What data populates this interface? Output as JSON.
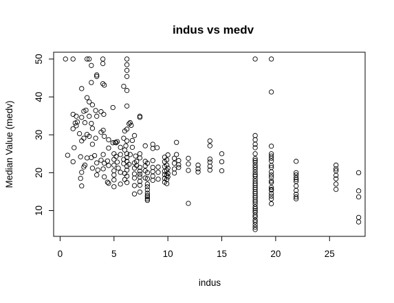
{
  "chart_data": {
    "type": "scatter",
    "title": "indus vs medv",
    "xlabel": "indus",
    "ylabel": "Median Value (medv)",
    "xlim": [
      -0.6,
      28.3
    ],
    "ylim": [
      3.2,
      51.8
    ],
    "xticks": [
      0,
      5,
      10,
      15,
      20,
      25
    ],
    "yticks": [
      10,
      20,
      30,
      40,
      50
    ],
    "grid": false,
    "legend": "none",
    "marker": "open-circle",
    "points": [
      {
        "x": 0.5,
        "y": 50.0
      },
      {
        "x": 1.2,
        "y": 50.0
      },
      {
        "x": 2.5,
        "y": 50.0
      },
      {
        "x": 2.7,
        "y": 50.0
      },
      {
        "x": 2.9,
        "y": 48.3
      },
      {
        "x": 3.97,
        "y": 50.0
      },
      {
        "x": 3.97,
        "y": 48.8
      },
      {
        "x": 6.2,
        "y": 50.0
      },
      {
        "x": 6.2,
        "y": 48.5
      },
      {
        "x": 6.2,
        "y": 47.0
      },
      {
        "x": 6.2,
        "y": 45.4
      },
      {
        "x": 18.1,
        "y": 50.0
      },
      {
        "x": 19.6,
        "y": 50.0
      },
      {
        "x": 19.6,
        "y": 41.3
      },
      {
        "x": 3.4,
        "y": 45.8
      },
      {
        "x": 3.4,
        "y": 45.4
      },
      {
        "x": 2.0,
        "y": 42.2
      },
      {
        "x": 2.9,
        "y": 43.8
      },
      {
        "x": 3.97,
        "y": 43.5
      },
      {
        "x": 4.1,
        "y": 43.1
      },
      {
        "x": 5.9,
        "y": 42.8
      },
      {
        "x": 6.2,
        "y": 41.7
      },
      {
        "x": 4.9,
        "y": 37.2
      },
      {
        "x": 6.2,
        "y": 37.6
      },
      {
        "x": 2.5,
        "y": 39.8
      },
      {
        "x": 2.7,
        "y": 38.7
      },
      {
        "x": 3.0,
        "y": 37.9
      },
      {
        "x": 2.4,
        "y": 36.5
      },
      {
        "x": 2.2,
        "y": 36.2
      },
      {
        "x": 3.3,
        "y": 36.4
      },
      {
        "x": 3.8,
        "y": 36.1
      },
      {
        "x": 4.05,
        "y": 35.4
      },
      {
        "x": 1.2,
        "y": 35.4
      },
      {
        "x": 1.5,
        "y": 34.9
      },
      {
        "x": 2.0,
        "y": 34.6
      },
      {
        "x": 2.7,
        "y": 34.9
      },
      {
        "x": 3.4,
        "y": 34.9
      },
      {
        "x": 1.6,
        "y": 33.4
      },
      {
        "x": 1.4,
        "y": 33.1
      },
      {
        "x": 1.5,
        "y": 32.4
      },
      {
        "x": 1.2,
        "y": 31.6
      },
      {
        "x": 2.3,
        "y": 33.2
      },
      {
        "x": 2.9,
        "y": 33.0
      },
      {
        "x": 3.0,
        "y": 31.7
      },
      {
        "x": 2.5,
        "y": 30.1
      },
      {
        "x": 2.2,
        "y": 29.1
      },
      {
        "x": 2.0,
        "y": 28.4
      },
      {
        "x": 2.7,
        "y": 29.6
      },
      {
        "x": 3.3,
        "y": 29.1
      },
      {
        "x": 3.8,
        "y": 30.7
      },
      {
        "x": 4.0,
        "y": 31.2
      },
      {
        "x": 4.1,
        "y": 29.6
      },
      {
        "x": 4.5,
        "y": 28.7
      },
      {
        "x": 3.0,
        "y": 27.5
      },
      {
        "x": 1.8,
        "y": 30.3
      },
      {
        "x": 6.4,
        "y": 32.9
      },
      {
        "x": 6.5,
        "y": 33.2
      },
      {
        "x": 6.6,
        "y": 32.5
      },
      {
        "x": 6.2,
        "y": 31.5
      },
      {
        "x": 6.0,
        "y": 31.0
      },
      {
        "x": 5.1,
        "y": 28.0
      },
      {
        "x": 5.2,
        "y": 27.9
      },
      {
        "x": 5.3,
        "y": 28.2
      },
      {
        "x": 6.9,
        "y": 29.8
      },
      {
        "x": 6.7,
        "y": 28.5
      },
      {
        "x": 6.2,
        "y": 28.4
      },
      {
        "x": 5.9,
        "y": 29.1
      },
      {
        "x": 7.4,
        "y": 34.9
      },
      {
        "x": 7.4,
        "y": 34.6
      },
      {
        "x": 7.9,
        "y": 27.1
      },
      {
        "x": 8.6,
        "y": 26.4
      },
      {
        "x": 9.0,
        "y": 26.6
      },
      {
        "x": 8.6,
        "y": 27.5
      },
      {
        "x": 10.8,
        "y": 28.0
      },
      {
        "x": 13.9,
        "y": 28.4
      },
      {
        "x": 13.9,
        "y": 27.1
      },
      {
        "x": 15.0,
        "y": 25.0
      },
      {
        "x": 18.1,
        "y": 29.8
      },
      {
        "x": 18.1,
        "y": 28.7
      },
      {
        "x": 18.1,
        "y": 27.5
      },
      {
        "x": 18.1,
        "y": 26.6
      },
      {
        "x": 18.1,
        "y": 25.0
      },
      {
        "x": 18.1,
        "y": 23.7
      },
      {
        "x": 18.1,
        "y": 23.2
      },
      {
        "x": 18.1,
        "y": 22.7
      },
      {
        "x": 18.1,
        "y": 22.0
      },
      {
        "x": 18.1,
        "y": 21.4
      },
      {
        "x": 18.1,
        "y": 20.8
      },
      {
        "x": 18.1,
        "y": 20.1
      },
      {
        "x": 18.1,
        "y": 19.5
      },
      {
        "x": 18.1,
        "y": 19.1
      },
      {
        "x": 18.1,
        "y": 18.4
      },
      {
        "x": 18.1,
        "y": 17.8
      },
      {
        "x": 18.1,
        "y": 17.2
      },
      {
        "x": 18.1,
        "y": 16.7
      },
      {
        "x": 18.1,
        "y": 16.1
      },
      {
        "x": 18.1,
        "y": 15.6
      },
      {
        "x": 18.1,
        "y": 15.0
      },
      {
        "x": 18.1,
        "y": 14.5
      },
      {
        "x": 18.1,
        "y": 13.9
      },
      {
        "x": 18.1,
        "y": 13.4
      },
      {
        "x": 18.1,
        "y": 12.8
      },
      {
        "x": 18.1,
        "y": 12.3
      },
      {
        "x": 18.1,
        "y": 11.7
      },
      {
        "x": 18.1,
        "y": 11.0
      },
      {
        "x": 18.1,
        "y": 10.5
      },
      {
        "x": 18.1,
        "y": 10.0
      },
      {
        "x": 18.1,
        "y": 9.5
      },
      {
        "x": 18.1,
        "y": 8.8
      },
      {
        "x": 18.1,
        "y": 8.3
      },
      {
        "x": 18.1,
        "y": 7.5
      },
      {
        "x": 18.1,
        "y": 7.0
      },
      {
        "x": 18.1,
        "y": 6.3
      },
      {
        "x": 18.1,
        "y": 5.6
      },
      {
        "x": 18.1,
        "y": 5.0
      },
      {
        "x": 19.6,
        "y": 27.0
      },
      {
        "x": 19.6,
        "y": 25.0
      },
      {
        "x": 19.6,
        "y": 24.4
      },
      {
        "x": 19.6,
        "y": 23.8
      },
      {
        "x": 19.6,
        "y": 23.1
      },
      {
        "x": 19.6,
        "y": 21.9
      },
      {
        "x": 19.6,
        "y": 21.4
      },
      {
        "x": 19.6,
        "y": 20.2
      },
      {
        "x": 19.6,
        "y": 19.4
      },
      {
        "x": 19.6,
        "y": 18.8
      },
      {
        "x": 19.6,
        "y": 17.8
      },
      {
        "x": 19.6,
        "y": 17.4
      },
      {
        "x": 19.6,
        "y": 16.1
      },
      {
        "x": 19.6,
        "y": 15.6
      },
      {
        "x": 19.6,
        "y": 15.4
      },
      {
        "x": 19.6,
        "y": 14.5
      },
      {
        "x": 19.6,
        "y": 13.8
      },
      {
        "x": 19.6,
        "y": 13.1
      },
      {
        "x": 19.6,
        "y": 11.8
      },
      {
        "x": 21.9,
        "y": 23.0
      },
      {
        "x": 21.9,
        "y": 20.0
      },
      {
        "x": 21.9,
        "y": 19.4
      },
      {
        "x": 21.9,
        "y": 18.7
      },
      {
        "x": 21.9,
        "y": 18.2
      },
      {
        "x": 21.9,
        "y": 17.7
      },
      {
        "x": 21.9,
        "y": 16.5
      },
      {
        "x": 21.9,
        "y": 15.3
      },
      {
        "x": 21.9,
        "y": 14.3
      },
      {
        "x": 21.9,
        "y": 13.6
      },
      {
        "x": 21.9,
        "y": 13.1
      },
      {
        "x": 25.6,
        "y": 22.0
      },
      {
        "x": 25.6,
        "y": 21.0
      },
      {
        "x": 25.6,
        "y": 20.5
      },
      {
        "x": 25.6,
        "y": 19.3
      },
      {
        "x": 25.6,
        "y": 18.4
      },
      {
        "x": 25.6,
        "y": 17.0
      },
      {
        "x": 25.6,
        "y": 15.6
      },
      {
        "x": 27.7,
        "y": 20.0
      },
      {
        "x": 27.7,
        "y": 15.2
      },
      {
        "x": 27.7,
        "y": 13.6
      },
      {
        "x": 27.7,
        "y": 8.2
      },
      {
        "x": 27.7,
        "y": 7.0
      },
      {
        "x": 0.7,
        "y": 24.6
      },
      {
        "x": 1.2,
        "y": 22.9
      },
      {
        "x": 1.3,
        "y": 26.6
      },
      {
        "x": 1.9,
        "y": 24.2
      },
      {
        "x": 2.2,
        "y": 21.5
      },
      {
        "x": 2.0,
        "y": 20.1
      },
      {
        "x": 1.9,
        "y": 18.5
      },
      {
        "x": 2.0,
        "y": 16.5
      },
      {
        "x": 2.5,
        "y": 23.9
      },
      {
        "x": 2.3,
        "y": 22.0
      },
      {
        "x": 2.9,
        "y": 24.0
      },
      {
        "x": 3.2,
        "y": 24.5
      },
      {
        "x": 3.4,
        "y": 22.6
      },
      {
        "x": 3.0,
        "y": 21.2
      },
      {
        "x": 3.4,
        "y": 19.4
      },
      {
        "x": 3.5,
        "y": 20.7
      },
      {
        "x": 3.8,
        "y": 23.3
      },
      {
        "x": 4.0,
        "y": 24.8
      },
      {
        "x": 4.1,
        "y": 22.5
      },
      {
        "x": 4.0,
        "y": 21.0
      },
      {
        "x": 4.1,
        "y": 18.9
      },
      {
        "x": 4.4,
        "y": 17.5
      },
      {
        "x": 4.5,
        "y": 17.2
      },
      {
        "x": 4.4,
        "y": 23.1
      },
      {
        "x": 4.5,
        "y": 21.9
      },
      {
        "x": 4.5,
        "y": 26.5
      },
      {
        "x": 5.0,
        "y": 25.0
      },
      {
        "x": 5.0,
        "y": 23.5
      },
      {
        "x": 5.0,
        "y": 22.0
      },
      {
        "x": 5.0,
        "y": 20.5
      },
      {
        "x": 5.0,
        "y": 19.4
      },
      {
        "x": 5.0,
        "y": 18.1
      },
      {
        "x": 5.0,
        "y": 16.3
      },
      {
        "x": 5.2,
        "y": 24.3
      },
      {
        "x": 5.3,
        "y": 22.8
      },
      {
        "x": 5.4,
        "y": 21.2
      },
      {
        "x": 5.6,
        "y": 24.8
      },
      {
        "x": 5.6,
        "y": 20.1
      },
      {
        "x": 5.6,
        "y": 17.0
      },
      {
        "x": 5.9,
        "y": 23.5
      },
      {
        "x": 5.9,
        "y": 22.4
      },
      {
        "x": 6.0,
        "y": 26.0
      },
      {
        "x": 6.0,
        "y": 19.8
      },
      {
        "x": 6.0,
        "y": 18.2
      },
      {
        "x": 6.2,
        "y": 25.0
      },
      {
        "x": 6.2,
        "y": 24.0
      },
      {
        "x": 6.2,
        "y": 23.0
      },
      {
        "x": 6.2,
        "y": 21.7
      },
      {
        "x": 6.2,
        "y": 20.7
      },
      {
        "x": 6.2,
        "y": 19.1
      },
      {
        "x": 6.2,
        "y": 17.4
      },
      {
        "x": 6.4,
        "y": 22.2
      },
      {
        "x": 6.5,
        "y": 24.8
      },
      {
        "x": 6.7,
        "y": 26.7
      },
      {
        "x": 6.9,
        "y": 22.6
      },
      {
        "x": 6.9,
        "y": 21.2
      },
      {
        "x": 6.9,
        "y": 19.7
      },
      {
        "x": 6.9,
        "y": 18.6
      },
      {
        "x": 6.9,
        "y": 16.6
      },
      {
        "x": 6.9,
        "y": 14.4
      },
      {
        "x": 7.0,
        "y": 24.4
      },
      {
        "x": 7.1,
        "y": 23.0
      },
      {
        "x": 7.1,
        "y": 21.9
      },
      {
        "x": 7.4,
        "y": 23.9
      },
      {
        "x": 7.4,
        "y": 21.4
      },
      {
        "x": 7.4,
        "y": 20.4
      },
      {
        "x": 7.4,
        "y": 19.6
      },
      {
        "x": 7.4,
        "y": 18.9
      },
      {
        "x": 7.4,
        "y": 17.7
      },
      {
        "x": 7.4,
        "y": 16.7
      },
      {
        "x": 7.4,
        "y": 14.9
      },
      {
        "x": 7.4,
        "y": 25.0
      },
      {
        "x": 7.9,
        "y": 23.0
      },
      {
        "x": 7.9,
        "y": 21.8
      },
      {
        "x": 7.9,
        "y": 20.5
      },
      {
        "x": 7.9,
        "y": 18.6
      },
      {
        "x": 8.1,
        "y": 22.5
      },
      {
        "x": 8.1,
        "y": 20.0
      },
      {
        "x": 8.1,
        "y": 18.4
      },
      {
        "x": 8.1,
        "y": 17.0
      },
      {
        "x": 8.1,
        "y": 16.3
      },
      {
        "x": 8.1,
        "y": 15.5
      },
      {
        "x": 8.1,
        "y": 14.6
      },
      {
        "x": 8.1,
        "y": 14.0
      },
      {
        "x": 8.1,
        "y": 13.6
      },
      {
        "x": 8.1,
        "y": 13.1
      },
      {
        "x": 8.1,
        "y": 12.7
      },
      {
        "x": 8.6,
        "y": 23.2
      },
      {
        "x": 8.6,
        "y": 21.4
      },
      {
        "x": 8.6,
        "y": 20.3
      },
      {
        "x": 8.6,
        "y": 19.1
      },
      {
        "x": 8.6,
        "y": 18.0
      },
      {
        "x": 9.1,
        "y": 21.5
      },
      {
        "x": 9.1,
        "y": 20.1
      },
      {
        "x": 9.1,
        "y": 18.3
      },
      {
        "x": 9.7,
        "y": 24.1
      },
      {
        "x": 9.7,
        "y": 22.9
      },
      {
        "x": 9.7,
        "y": 21.6
      },
      {
        "x": 9.7,
        "y": 20.4
      },
      {
        "x": 9.7,
        "y": 19.5
      },
      {
        "x": 9.7,
        "y": 18.5
      },
      {
        "x": 9.7,
        "y": 17.5
      },
      {
        "x": 9.9,
        "y": 23.4
      },
      {
        "x": 9.9,
        "y": 22.0
      },
      {
        "x": 9.9,
        "y": 20.6
      },
      {
        "x": 9.9,
        "y": 19.3
      },
      {
        "x": 9.9,
        "y": 18.2
      },
      {
        "x": 9.9,
        "y": 17.1
      },
      {
        "x": 10.0,
        "y": 24.7
      },
      {
        "x": 10.0,
        "y": 21.2
      },
      {
        "x": 10.0,
        "y": 19.8
      },
      {
        "x": 10.0,
        "y": 18.9
      },
      {
        "x": 10.6,
        "y": 23.8
      },
      {
        "x": 10.6,
        "y": 22.5
      },
      {
        "x": 10.6,
        "y": 21.0
      },
      {
        "x": 10.6,
        "y": 19.9
      },
      {
        "x": 10.8,
        "y": 24.8
      },
      {
        "x": 11.0,
        "y": 23.2
      },
      {
        "x": 11.0,
        "y": 22.1
      },
      {
        "x": 11.0,
        "y": 21.4
      },
      {
        "x": 11.9,
        "y": 23.8
      },
      {
        "x": 11.9,
        "y": 22.3
      },
      {
        "x": 11.9,
        "y": 20.6
      },
      {
        "x": 11.9,
        "y": 11.9
      },
      {
        "x": 12.8,
        "y": 22.0
      },
      {
        "x": 12.8,
        "y": 21.0
      },
      {
        "x": 12.8,
        "y": 20.2
      },
      {
        "x": 13.9,
        "y": 23.6
      },
      {
        "x": 13.9,
        "y": 22.8
      },
      {
        "x": 13.9,
        "y": 21.7
      },
      {
        "x": 13.9,
        "y": 20.7
      },
      {
        "x": 15.0,
        "y": 22.9
      },
      {
        "x": 15.0,
        "y": 20.5
      },
      {
        "x": 4.9,
        "y": 27.9
      },
      {
        "x": 6.1,
        "y": 27.1
      },
      {
        "x": 5.6,
        "y": 26.7
      }
    ]
  }
}
